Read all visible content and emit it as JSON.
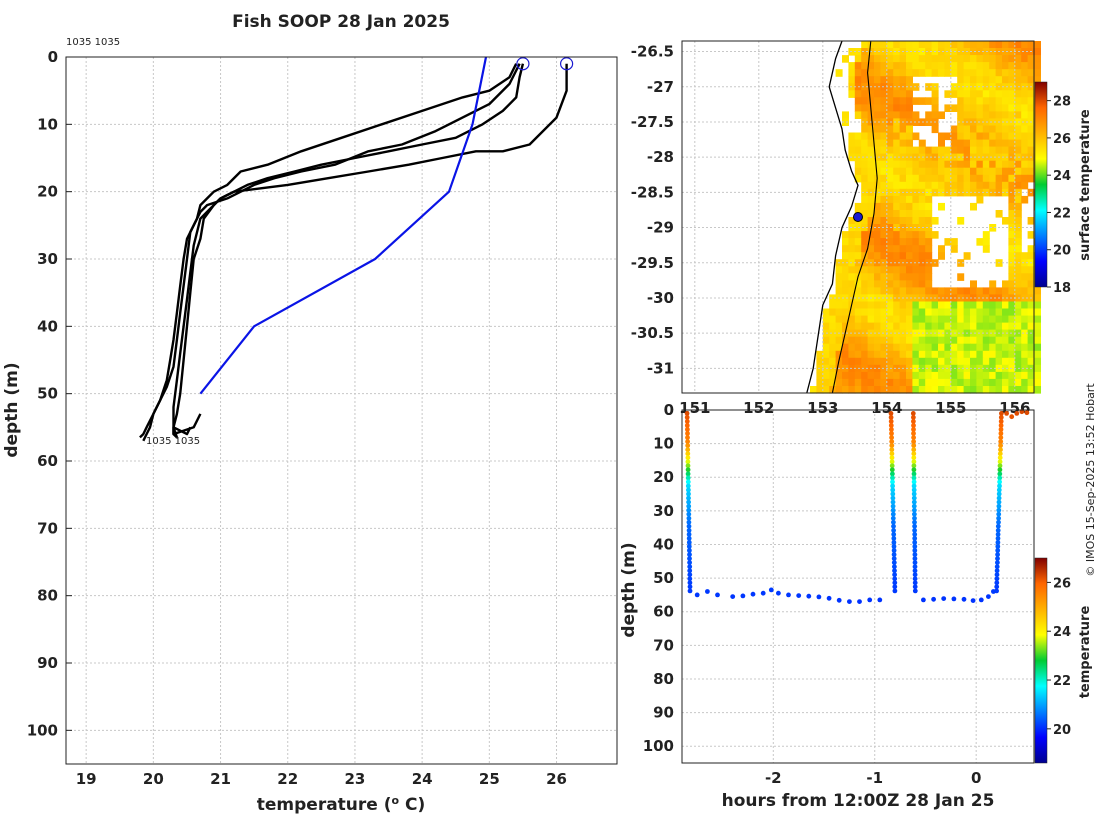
{
  "title": "Fish SOOP 28 Jan 2025",
  "copyright": "© IMOS 15-Sep-2025 13:52 Hobart",
  "colors": {
    "profile_line": "#000000",
    "climatology_line": "#0a14e6",
    "marker": "#1a1ad0",
    "coast": "#000000"
  },
  "chart_data": [
    {
      "type": "line",
      "panel": "profile",
      "xlabel": "temperature (",
      "xlabel_sup": "o",
      "xlabel_tail": " C)",
      "ylabel": "depth (m)",
      "xlim": [
        18.7,
        26.9
      ],
      "ylim": [
        0,
        105
      ],
      "y_reversed": true,
      "xticks": [
        19,
        20,
        21,
        22,
        23,
        24,
        25,
        26
      ],
      "yticks": [
        0,
        10,
        20,
        30,
        40,
        50,
        60,
        70,
        80,
        90,
        100
      ],
      "grid": true,
      "top_label": "1035 1035",
      "bottom_label": "1035 1035",
      "series": [
        {
          "style": "profile",
          "x": [
            26.15,
            26.15,
            26.0,
            25.6,
            25.2,
            24.8,
            24.3,
            23.8,
            23.2,
            22.6,
            22.0,
            21.6,
            21.2,
            21.0,
            20.9,
            20.8,
            20.7,
            20.6,
            20.55,
            20.5,
            20.45,
            20.4,
            20.35,
            20.3,
            20.3,
            20.35,
            20.3,
            20.5,
            20.55
          ],
          "y": [
            1,
            5,
            9,
            13,
            14,
            14,
            15,
            16,
            17,
            18,
            19,
            19.5,
            20,
            21,
            22,
            23,
            24,
            28,
            32,
            36,
            40,
            44,
            48,
            52,
            56,
            56.5,
            55,
            56,
            55
          ]
        },
        {
          "style": "profile",
          "x": [
            25.5,
            25.45,
            25.4,
            25.2,
            24.9,
            24.5,
            24.0,
            23.5,
            23.0,
            22.5,
            22.1,
            21.7,
            21.4,
            21.2,
            21.1,
            21.0,
            20.9,
            20.75,
            20.7,
            20.6,
            20.55,
            20.5,
            20.45,
            20.4,
            20.35,
            20.3,
            20.3,
            20.6,
            20.7
          ],
          "y": [
            1,
            3,
            6,
            8,
            10,
            12,
            13,
            14,
            15,
            16,
            17,
            18,
            19,
            20,
            20.5,
            21,
            22,
            24,
            27,
            30,
            35,
            40,
            45,
            50,
            53,
            55,
            56,
            55,
            53
          ]
        },
        {
          "style": "profile",
          "x": [
            25.45,
            25.3,
            25.0,
            24.6,
            24.2,
            23.7,
            23.2,
            22.7,
            22.2,
            21.8,
            21.5,
            21.3,
            21.1,
            20.95,
            20.8,
            20.7,
            20.6,
            20.5,
            20.45,
            20.4,
            20.35,
            20.3,
            20.25,
            20.2,
            20.1,
            20.0,
            19.95,
            19.9,
            19.85
          ],
          "y": [
            1,
            4,
            7,
            9,
            11,
            13,
            14,
            16,
            17,
            18,
            19,
            20,
            21,
            21.5,
            22,
            23,
            25,
            27,
            30,
            34,
            38,
            42,
            45,
            48,
            51,
            53,
            55,
            56,
            57
          ]
        },
        {
          "style": "profile",
          "x": [
            25.4,
            25.3,
            25.0,
            24.6,
            24.0,
            23.4,
            22.8,
            22.2,
            21.7,
            21.3,
            21.1,
            20.9,
            20.8,
            20.7,
            20.65,
            20.55,
            20.5,
            20.45,
            20.4,
            20.35,
            20.3,
            20.2,
            20.1,
            20.0,
            19.9,
            19.85,
            19.8
          ],
          "y": [
            1,
            3,
            5,
            6,
            8,
            10,
            12,
            14,
            16,
            17,
            19,
            20,
            21,
            22,
            24,
            26,
            30,
            34,
            38,
            42,
            46,
            49,
            51,
            53,
            55,
            56,
            56.5
          ]
        },
        {
          "style": "climatology",
          "x": [
            24.95,
            24.75,
            24.4,
            23.3,
            21.5,
            20.7
          ],
          "y": [
            0,
            10,
            20,
            30,
            40,
            50
          ]
        }
      ],
      "surface_markers": [
        {
          "x": 25.5,
          "y": 1
        },
        {
          "x": 26.15,
          "y": 1
        }
      ]
    },
    {
      "type": "heatmap",
      "panel": "map",
      "yticks": [
        -26.5,
        -27,
        -27.5,
        -28,
        -28.5,
        -29,
        -29.5,
        -30,
        -30.5,
        -31
      ],
      "xticks": [
        151,
        152,
        153,
        154,
        155,
        156
      ],
      "xlim": [
        150.8,
        156.3
      ],
      "ylim": [
        -31.35,
        -26.35
      ],
      "colorbar_label": "surface temperature",
      "colorbar_ticks": [
        18,
        20,
        22,
        24,
        26,
        28
      ],
      "colorbar_range": [
        18,
        29
      ],
      "position_marker": {
        "lon": 153.55,
        "lat": -28.85
      }
    },
    {
      "type": "scatter",
      "panel": "section",
      "xlabel": "hours from 12:00Z 28 Jan 25",
      "ylabel": "depth (m)",
      "xlim": [
        -2.9,
        0.57
      ],
      "ylim": [
        0,
        105
      ],
      "y_reversed": true,
      "xticks": [
        -2,
        -1,
        0
      ],
      "yticks": [
        0,
        10,
        20,
        30,
        40,
        50,
        60,
        70,
        80,
        90,
        100
      ],
      "grid": true,
      "colorbar_label": "temperature",
      "colorbar_ticks": [
        20,
        22,
        24,
        26
      ],
      "colorbar_range": [
        18.6,
        27
      ]
    }
  ]
}
